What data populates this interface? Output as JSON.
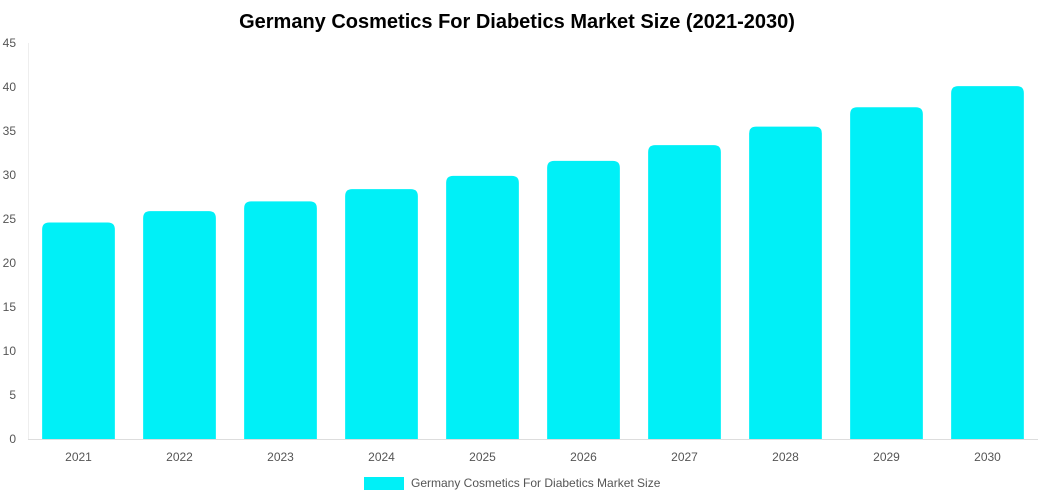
{
  "chart_data": {
    "type": "bar",
    "title": "Germany Cosmetics For Diabetics Market Size (2021-2030)",
    "categories": [
      "2021",
      "2022",
      "2023",
      "2024",
      "2025",
      "2026",
      "2027",
      "2028",
      "2029",
      "2030"
    ],
    "series": [
      {
        "name": "Germany Cosmetics For Diabetics Market Size",
        "values": [
          24.6,
          25.9,
          27.0,
          28.4,
          29.9,
          31.6,
          33.4,
          35.5,
          37.7,
          40.1
        ],
        "color": "#00f0f7"
      }
    ],
    "yticks": [
      "0",
      "5",
      "10",
      "15",
      "20",
      "25",
      "30",
      "35",
      "40",
      "45"
    ],
    "ylim": [
      0,
      45
    ],
    "grid": false,
    "legend_position": "bottom"
  }
}
